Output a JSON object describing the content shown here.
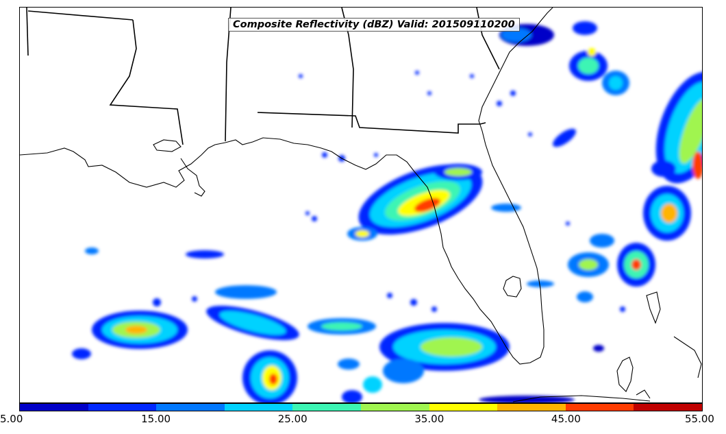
{
  "title": "Composite Reflectivity (dBZ) Valid: 201509110200",
  "colorbar": {
    "colors": [
      "#0000c8",
      "#0028ff",
      "#0078ff",
      "#00d2ff",
      "#3cf5b4",
      "#a0f550",
      "#ffff00",
      "#ffb400",
      "#ff3c00",
      "#c00000"
    ],
    "labels": [
      "5.00",
      "15.00",
      "25.00",
      "35.00",
      "45.00",
      "55.00"
    ],
    "min": 5,
    "max": 55,
    "units": "dBZ"
  }
}
